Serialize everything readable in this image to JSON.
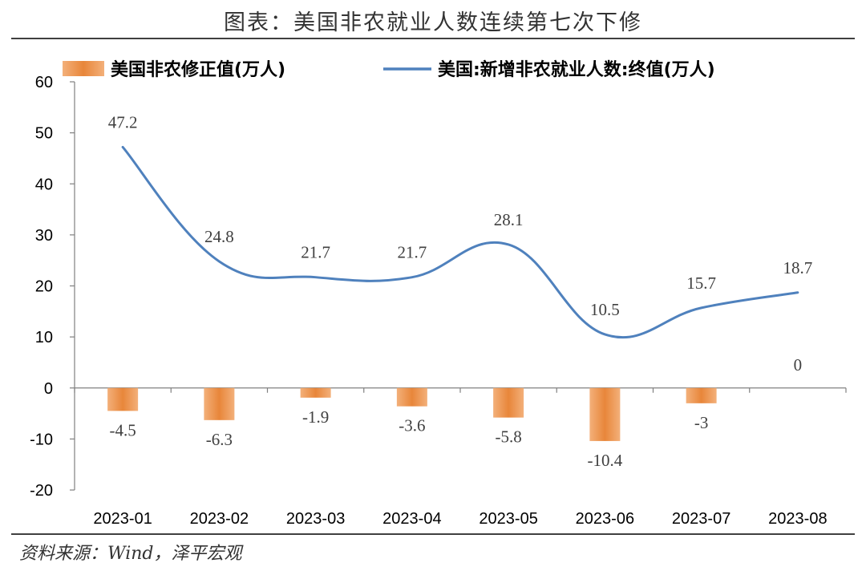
{
  "header": {
    "title": "图表：美国非农就业人数连续第七次下修"
  },
  "footer": {
    "source": "资料来源：Wind，泽平宏观"
  },
  "chart_data": {
    "type": "bar+line",
    "categories": [
      "2023-01",
      "2023-02",
      "2023-03",
      "2023-04",
      "2023-05",
      "2023-06",
      "2023-07",
      "2023-08"
    ],
    "series": [
      {
        "name": "美国非农修正值(万人)",
        "type": "bar",
        "color": "#E8863A",
        "values": [
          -4.5,
          -6.3,
          -1.9,
          -3.6,
          -5.8,
          -10.4,
          -3,
          0
        ],
        "labels": [
          "-4.5",
          "-6.3",
          "-1.9",
          "-3.6",
          "-5.8",
          "-10.4",
          "-3",
          "0"
        ]
      },
      {
        "name": "美国:新增非农就业人数:终值(万人)",
        "type": "line",
        "color": "#4F81BD",
        "values": [
          47.2,
          24.8,
          21.7,
          21.7,
          28.1,
          10.5,
          15.7,
          18.7
        ],
        "labels": [
          "47.2",
          "24.8",
          "21.7",
          "21.7",
          "28.1",
          "10.5",
          "15.7",
          "18.7"
        ]
      }
    ],
    "y_ticks": [
      "60",
      "50",
      "40",
      "30",
      "20",
      "10",
      "0",
      "-10",
      "-20"
    ],
    "ylim": [
      -20,
      60
    ],
    "legend": "top",
    "grid": false
  }
}
